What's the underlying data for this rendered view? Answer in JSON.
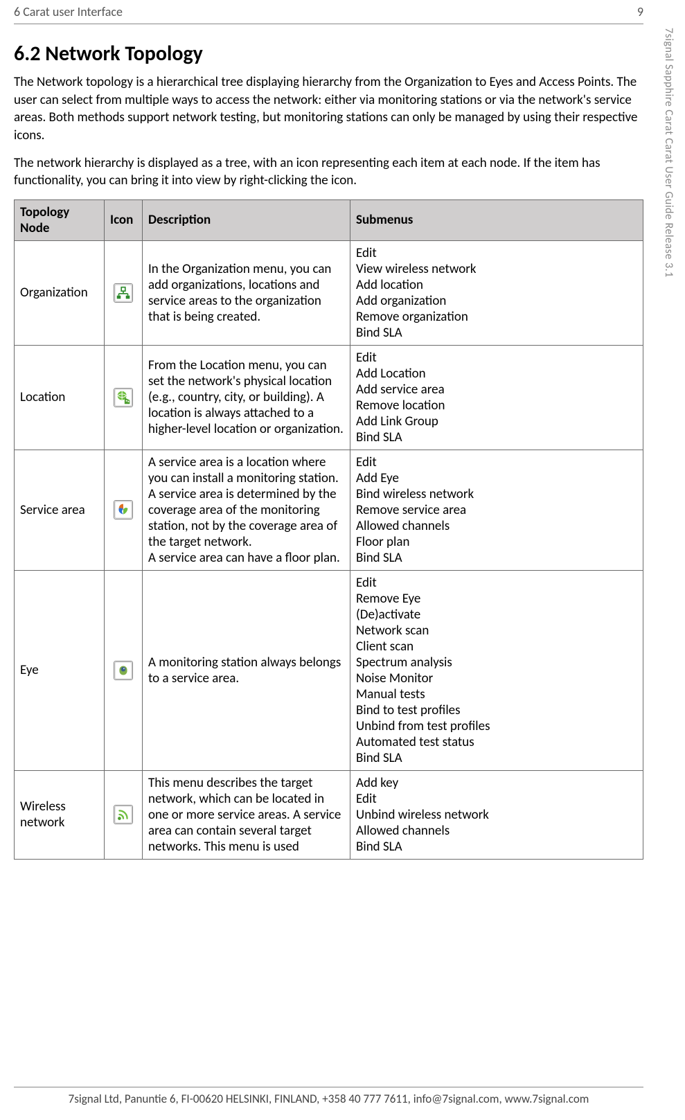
{
  "header": {
    "chapter": "6 Carat user Interface",
    "page_number": "9"
  },
  "sidetext": "7signal Sapphire Carat Carat User Guide Release 3.1",
  "section": {
    "title": "6.2 Network Topology",
    "para1": "The Network topology is a hierarchical tree displaying hierarchy from the Organization to Eyes and Access Points. The user can select from multiple ways to access the network: either via monitoring stations or via the network's service areas. Both methods support network testing, but monitoring stations can only be managed by using their respective icons.",
    "para2": "The network hierarchy is displayed as a tree, with an icon representing each item at each node. If the item has functionality, you can bring it into view by right-clicking the icon."
  },
  "table": {
    "headers": {
      "node": "Topology Node",
      "icon": "Icon",
      "description": "Description",
      "submenus": "Submenus"
    },
    "rows": [
      {
        "node": "Organization",
        "icon": "organization-icon",
        "description": "In the Organization menu, you can add organizations, locations and service areas to the organization that is being created.",
        "submenus": [
          "Edit",
          "View wireless network",
          "Add location",
          "Add organization",
          "Remove organization",
          "Bind SLA"
        ]
      },
      {
        "node": "Location",
        "icon": "location-icon",
        "description": "From the Location menu, you can set the network's physical location (e.g., country, city, or building). A location is always attached to a higher-level location or organization.",
        "submenus": [
          "Edit",
          "Add Location",
          "Add service area",
          "Remove location",
          "Add Link Group",
          "Bind SLA"
        ]
      },
      {
        "node": "Service area",
        "icon": "service-area-icon",
        "description": "A service area is a location where you can install a monitoring station. A service area is determined by the coverage area of the monitoring station, not by the coverage area of the target network.\nA service area can have a floor plan.",
        "submenus": [
          "Edit",
          "Add Eye",
          "Bind wireless network",
          "Remove service area",
          "Allowed channels",
          "Floor plan",
          "Bind SLA"
        ]
      },
      {
        "node": "Eye",
        "icon": "eye-icon",
        "description": "A monitoring station always belongs to a service area.",
        "submenus": [
          "Edit",
          "Remove Eye",
          "(De)activate",
          "Network scan",
          "Client scan",
          "Spectrum analysis",
          "Noise Monitor",
          "Manual tests",
          "Bind to test profiles",
          "Unbind from test profiles",
          "Automated test status",
          "Bind SLA"
        ]
      },
      {
        "node": "Wireless network",
        "icon": "wireless-network-icon",
        "description": "This menu describes the target network, which can be located in one or more service areas. A service area can contain several target networks. This menu is used",
        "submenus": [
          "Add key",
          "Edit",
          "Unbind wireless network",
          "Allowed channels",
          "Bind SLA"
        ]
      }
    ]
  },
  "icons": {
    "organization-icon": {
      "bg": "#ffffff",
      "stroke": "#2e8b2e",
      "fill": "#2e8b2e"
    },
    "location-icon": {
      "bg": "#ffffff",
      "globe": "#6fbf3f",
      "base": "#4d9e2f"
    },
    "service-area-icon": {
      "bg": "#ffffff",
      "c1": "#e07020",
      "c2": "#6fbf3f",
      "c3": "#2a6fd6"
    },
    "eye-icon": {
      "bg": "#ffffff",
      "body": "#7fae4a",
      "lens": "#3a5f8a"
    },
    "wireless-network-icon": {
      "bg": "#ffffff",
      "wave": "#6fbf3f",
      "dot": "#4d9e2f"
    }
  },
  "footer": "7signal Ltd, Panuntie 6, FI-00620 HELSINKI, FINLAND, +358 40 777 7611, info@7signal.com, www.7signal.com"
}
